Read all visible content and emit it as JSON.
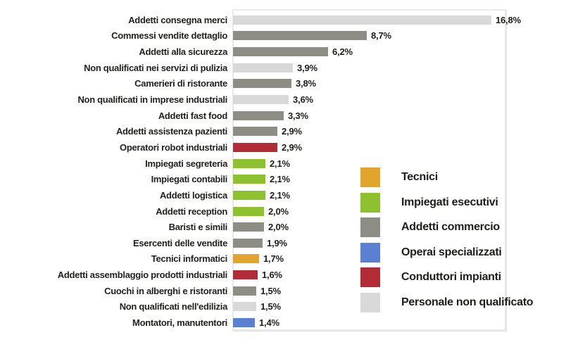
{
  "chart_data": {
    "type": "bar",
    "orientation": "horizontal",
    "title": "",
    "xlabel": "",
    "ylabel": "",
    "xlim": [
      0,
      17.8
    ],
    "grid": false,
    "value_suffix": "%",
    "decimal_separator": ",",
    "legend_position": "inside-right",
    "colors": {
      "Tecnici": "#e2a52b",
      "Impiegati esecutivi": "#8dc22e",
      "Addetti commercio": "#8d8d85",
      "Operai specializzati": "#5b80d1",
      "Conduttori impianti": "#b42b38",
      "Personale non qualificato": "#d9d9d9"
    },
    "bars": [
      {
        "label": "Addetti consegna merci",
        "value": 16.8,
        "display": "16,8%",
        "category": "Personale non qualificato"
      },
      {
        "label": "Commessi vendite dettaglio",
        "value": 8.7,
        "display": "8,7%",
        "category": "Addetti commercio"
      },
      {
        "label": "Addetti alla sicurezza",
        "value": 6.2,
        "display": "6,2%",
        "category": "Addetti commercio"
      },
      {
        "label": "Non qualificati nei servizi di pulizia",
        "value": 3.9,
        "display": "3,9%",
        "category": "Personale non qualificato"
      },
      {
        "label": "Camerieri di ristorante",
        "value": 3.8,
        "display": "3,8%",
        "category": "Addetti commercio"
      },
      {
        "label": "Non qualificati in imprese industriali",
        "value": 3.6,
        "display": "3,6%",
        "category": "Personale non qualificato"
      },
      {
        "label": "Addetti fast food",
        "value": 3.3,
        "display": "3,3%",
        "category": "Addetti commercio"
      },
      {
        "label": "Addetti assistenza pazienti",
        "value": 2.9,
        "display": "2,9%",
        "category": "Addetti commercio"
      },
      {
        "label": "Operatori robot industriali",
        "value": 2.9,
        "display": "2,9%",
        "category": "Conduttori impianti"
      },
      {
        "label": "Impiegati segreteria",
        "value": 2.1,
        "display": "2,1%",
        "category": "Impiegati esecutivi"
      },
      {
        "label": "Impiegati contabili",
        "value": 2.1,
        "display": "2,1%",
        "category": "Impiegati esecutivi"
      },
      {
        "label": "Addetti logistica",
        "value": 2.1,
        "display": "2,1%",
        "category": "Impiegati esecutivi"
      },
      {
        "label": "Addetti reception",
        "value": 2.0,
        "display": "2,0%",
        "category": "Impiegati esecutivi"
      },
      {
        "label": "Baristi e simili",
        "value": 2.0,
        "display": "2,0%",
        "category": "Addetti commercio"
      },
      {
        "label": "Esercenti delle vendite",
        "value": 1.9,
        "display": "1,9%",
        "category": "Addetti commercio"
      },
      {
        "label": "Tecnici informatici",
        "value": 1.7,
        "display": "1,7%",
        "category": "Tecnici"
      },
      {
        "label": "Addetti assemblaggio prodotti industriali",
        "value": 1.6,
        "display": "1,6%",
        "category": "Conduttori impianti"
      },
      {
        "label": "Cuochi in alberghi e ristoranti",
        "value": 1.5,
        "display": "1,5%",
        "category": "Addetti commercio"
      },
      {
        "label": "Non qualificati nell'edilizia",
        "value": 1.5,
        "display": "1,5%",
        "category": "Personale non qualificato"
      },
      {
        "label": "Montatori, manutentori",
        "value": 1.4,
        "display": "1,4%",
        "category": "Operai specializzati"
      }
    ],
    "legend": [
      {
        "label": "Tecnici"
      },
      {
        "label": "Impiegati esecutivi"
      },
      {
        "label": "Addetti commercio"
      },
      {
        "label": "Operai specializzati"
      },
      {
        "label": "Conduttori impianti"
      },
      {
        "label": "Personale non qualificato"
      }
    ]
  }
}
